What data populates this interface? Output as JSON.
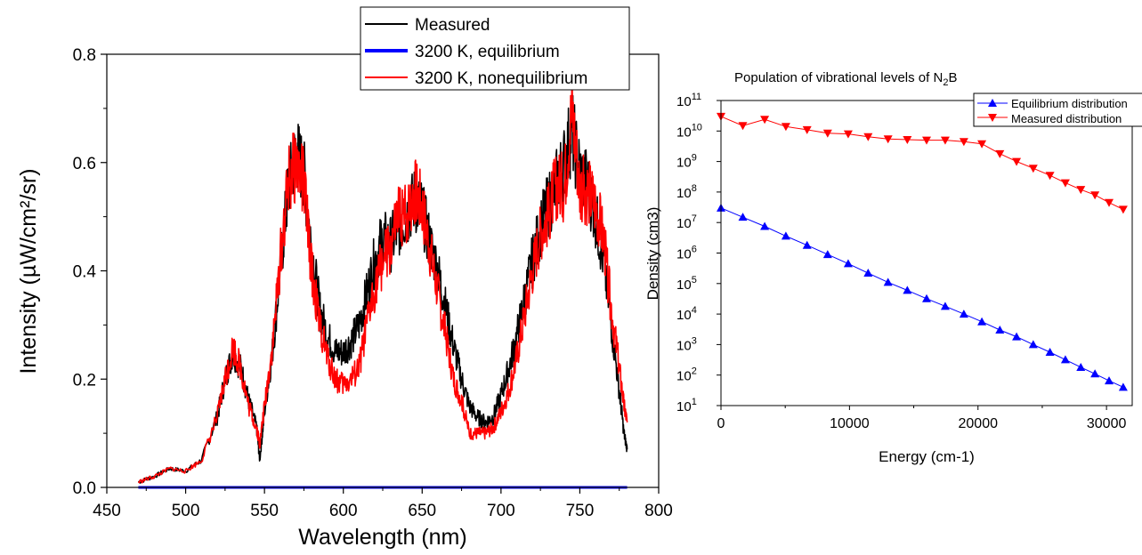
{
  "chart_data": [
    {
      "type": "line",
      "title": "",
      "xlabel": "Wavelength (nm)",
      "ylabel": "Intensity (µW/cm²/sr)",
      "xlim": [
        450,
        800
      ],
      "ylim": [
        0.0,
        0.8
      ],
      "xticks": [
        450,
        500,
        550,
        600,
        650,
        700,
        750,
        800
      ],
      "yticks": [
        0.0,
        0.2,
        0.4,
        0.6,
        0.8
      ],
      "xtick_labels": [
        "450",
        "500",
        "550",
        "600",
        "650",
        "700",
        "750",
        "800"
      ],
      "ytick_labels": [
        "0.0",
        "0.2",
        "0.4",
        "0.6",
        "0.8"
      ],
      "grid": false,
      "legend_position": "top-right",
      "series": [
        {
          "name": "Measured",
          "color": "#000000",
          "x": [
            470,
            480,
            490,
            500,
            510,
            520,
            525,
            530,
            535,
            540,
            545,
            547,
            550,
            555,
            560,
            565,
            570,
            575,
            580,
            585,
            590,
            595,
            600,
            605,
            610,
            615,
            620,
            625,
            630,
            635,
            640,
            645,
            650,
            655,
            660,
            665,
            670,
            675,
            680,
            685,
            690,
            695,
            700,
            705,
            710,
            715,
            720,
            725,
            730,
            735,
            740,
            745,
            750,
            755,
            760,
            765,
            770,
            775,
            778,
            780
          ],
          "y": [
            0.01,
            0.02,
            0.035,
            0.03,
            0.05,
            0.13,
            0.2,
            0.25,
            0.22,
            0.16,
            0.11,
            0.05,
            0.14,
            0.25,
            0.4,
            0.55,
            0.62,
            0.58,
            0.44,
            0.33,
            0.28,
            0.25,
            0.25,
            0.27,
            0.3,
            0.36,
            0.42,
            0.46,
            0.45,
            0.48,
            0.5,
            0.53,
            0.51,
            0.45,
            0.4,
            0.33,
            0.26,
            0.2,
            0.15,
            0.13,
            0.12,
            0.13,
            0.17,
            0.22,
            0.28,
            0.35,
            0.42,
            0.48,
            0.52,
            0.56,
            0.6,
            0.66,
            0.58,
            0.56,
            0.5,
            0.42,
            0.3,
            0.18,
            0.1,
            0.07
          ]
        },
        {
          "name": "3200 K, equilibrium",
          "color": "#0000ff",
          "x": [
            470,
            780
          ],
          "y": [
            0.0,
            0.0
          ]
        },
        {
          "name": "3200 K, nonequilibrium",
          "color": "#ff0000",
          "x": [
            470,
            480,
            490,
            500,
            510,
            520,
            525,
            530,
            535,
            540,
            545,
            547,
            550,
            555,
            560,
            565,
            570,
            575,
            580,
            585,
            590,
            595,
            600,
            605,
            610,
            615,
            620,
            625,
            630,
            635,
            640,
            645,
            650,
            655,
            660,
            665,
            670,
            675,
            680,
            685,
            690,
            695,
            700,
            705,
            710,
            715,
            720,
            725,
            730,
            735,
            740,
            745,
            750,
            755,
            760,
            765,
            770,
            775,
            778,
            780
          ],
          "y": [
            0.01,
            0.02,
            0.035,
            0.03,
            0.05,
            0.13,
            0.2,
            0.26,
            0.22,
            0.15,
            0.11,
            0.08,
            0.15,
            0.26,
            0.42,
            0.56,
            0.6,
            0.56,
            0.4,
            0.3,
            0.24,
            0.2,
            0.19,
            0.2,
            0.22,
            0.3,
            0.37,
            0.42,
            0.44,
            0.5,
            0.5,
            0.55,
            0.52,
            0.44,
            0.36,
            0.28,
            0.2,
            0.16,
            0.1,
            0.1,
            0.1,
            0.11,
            0.14,
            0.18,
            0.24,
            0.32,
            0.4,
            0.47,
            0.5,
            0.56,
            0.55,
            0.7,
            0.55,
            0.55,
            0.52,
            0.46,
            0.33,
            0.22,
            0.15,
            0.12
          ]
        }
      ]
    },
    {
      "type": "line",
      "title": "Population of vibrational levels of N",
      "title_subscript": "2",
      "title_suffix": "B",
      "xlabel": "Energy (cm-1)",
      "ylabel": "Density (cm3)",
      "xlim": [
        0,
        32000
      ],
      "ylim": [
        10,
        100000000000
      ],
      "yscale": "log",
      "xticks": [
        0,
        10000,
        20000,
        30000
      ],
      "xtick_labels": [
        "0",
        "10000",
        "20000",
        "30000"
      ],
      "ytick_exponents": [
        "1",
        "2",
        "3",
        "4",
        "5",
        "6",
        "7",
        "8",
        "9",
        "10",
        "11"
      ],
      "ytick_base": "10",
      "grid": false,
      "legend_position": "top-right",
      "series": [
        {
          "name": "Equilibrium distribution",
          "color": "#0000ff",
          "marker": "triangle-up",
          "x": [
            0,
            1700,
            3400,
            5050,
            6700,
            8300,
            9900,
            11450,
            13000,
            14500,
            16000,
            17450,
            18900,
            20300,
            21700,
            23000,
            24300,
            25600,
            26800,
            28000,
            29100,
            30200,
            31300
          ],
          "y": [
            30000000,
            15000000,
            7500000,
            3600000,
            1800000,
            900000,
            450000,
            220000,
            110000,
            60000,
            32000,
            18000,
            10000,
            5600,
            3000,
            1800,
            1000,
            560,
            320,
            180,
            110,
            65,
            40
          ]
        },
        {
          "name": "Measured distribution",
          "color": "#ff0000",
          "marker": "triangle-down",
          "x": [
            0,
            1700,
            3400,
            5050,
            6700,
            8300,
            9900,
            11450,
            13000,
            14500,
            16000,
            17450,
            18900,
            20300,
            21700,
            23000,
            24300,
            25600,
            26800,
            28000,
            29100,
            30200,
            31300
          ],
          "y": [
            30000000000,
            15000000000,
            24000000000,
            14000000000,
            11000000000,
            8500000000,
            8000000000,
            6500000000,
            5500000000,
            5200000000,
            5000000000,
            5000000000,
            4500000000,
            3800000000,
            1800000000,
            1000000000,
            600000000,
            350000000,
            200000000,
            120000000,
            80000000,
            45000000,
            27000000
          ]
        }
      ]
    }
  ]
}
